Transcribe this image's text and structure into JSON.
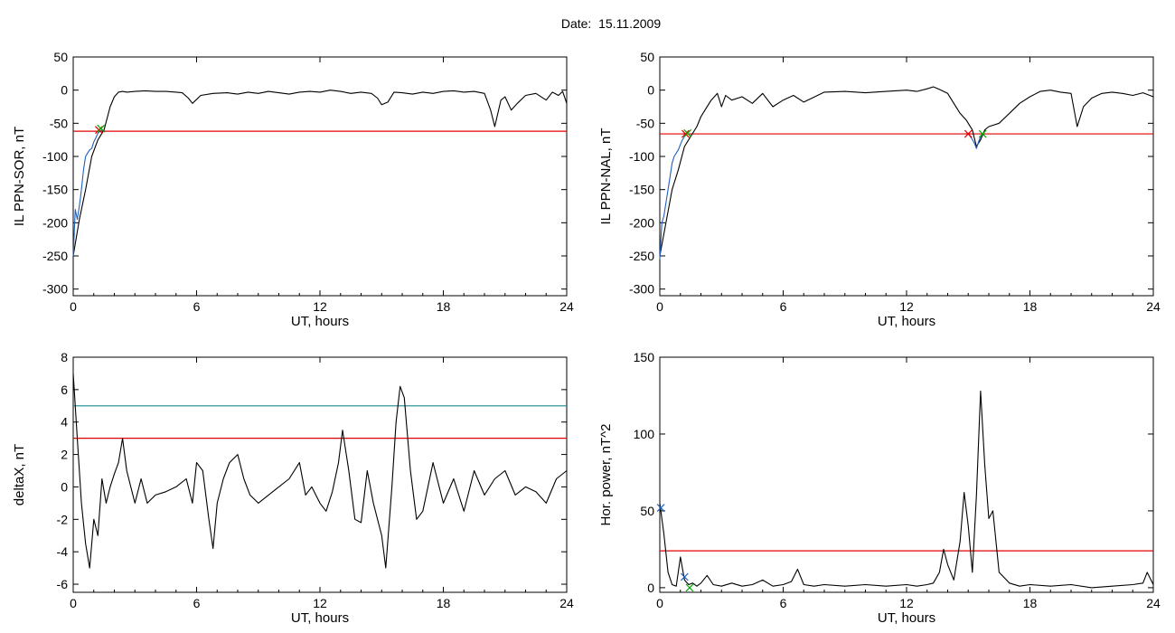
{
  "title": "Date:  15.11.2009",
  "chart_data": [
    {
      "type": "line",
      "xlabel": "UT, hours",
      "ylabel": "IL PPN-SOR, nT",
      "xlim": [
        0,
        24
      ],
      "ylim": [
        -310,
        50
      ],
      "xticks": [
        0,
        6,
        12,
        18,
        24
      ],
      "yticks": [
        50,
        0,
        -50,
        -100,
        -150,
        -200,
        -250,
        -300
      ],
      "series": [
        {
          "color": "#000000",
          "x": [
            0,
            0.3,
            0.6,
            0.9,
            1.2,
            1.5,
            1.8,
            2.0,
            2.2,
            2.4,
            2.6,
            3.0,
            3.5,
            4.0,
            4.5,
            5.0,
            5.3,
            5.6,
            5.8,
            6.2,
            6.8,
            7.5,
            8.0,
            8.5,
            9.0,
            9.5,
            10.0,
            10.5,
            11.0,
            11.5,
            12.0,
            12.5,
            13.0,
            13.5,
            14.0,
            14.5,
            14.8,
            15.0,
            15.3,
            15.6,
            16.0,
            16.5,
            17.0,
            17.5,
            18.0,
            18.5,
            19.0,
            19.5,
            20.0,
            20.3,
            20.5,
            20.8,
            21.0,
            21.3,
            21.6,
            22.0,
            22.5,
            23.0,
            23.3,
            23.6,
            23.8,
            24.0
          ],
          "y": [
            -250,
            -195,
            -150,
            -100,
            -75,
            -60,
            -25,
            -10,
            -3,
            -2,
            -3,
            -2,
            -1,
            -2,
            -2,
            -3,
            -4,
            -12,
            -20,
            -8,
            -5,
            -4,
            -6,
            -3,
            -5,
            -2,
            -4,
            -6,
            -3,
            -2,
            -3,
            0,
            -2,
            -5,
            -3,
            -5,
            -12,
            -22,
            -18,
            -3,
            -4,
            -6,
            -3,
            -5,
            -2,
            -1,
            -3,
            -2,
            -5,
            -30,
            -55,
            -15,
            -10,
            -30,
            -20,
            -8,
            -5,
            -15,
            -3,
            -8,
            -2,
            -20
          ]
        },
        {
          "color": "#1f5fbf",
          "x": [
            0,
            0.1,
            0.2,
            0.3,
            0.4,
            0.5,
            0.6,
            0.7,
            0.8,
            0.9,
            1.0,
            1.1,
            1.2,
            1.3,
            1.4
          ],
          "y": [
            -250,
            -180,
            -195,
            -175,
            -150,
            -120,
            -100,
            -95,
            -90,
            -88,
            -78,
            -72,
            -65,
            -62,
            -60
          ]
        }
      ],
      "hlines": [
        {
          "y": -62,
          "color": "#e00000"
        }
      ],
      "markers": [
        {
          "x": 1.25,
          "y": -60,
          "color": "#e00000",
          "symbol": "x"
        },
        {
          "x": 1.35,
          "y": -58,
          "color": "#00aa00",
          "symbol": "x"
        }
      ]
    },
    {
      "type": "line",
      "xlabel": "UT, hours",
      "ylabel": "IL PPN-NAL, nT",
      "xlim": [
        0,
        24
      ],
      "ylim": [
        -310,
        50
      ],
      "xticks": [
        0,
        6,
        12,
        18,
        24
      ],
      "yticks": [
        50,
        0,
        -50,
        -100,
        -150,
        -200,
        -250,
        -300
      ],
      "series": [
        {
          "color": "#000000",
          "x": [
            0,
            0.3,
            0.6,
            0.9,
            1.2,
            1.5,
            1.8,
            2.0,
            2.2,
            2.5,
            2.8,
            3.0,
            3.2,
            3.5,
            4.0,
            4.5,
            5.0,
            5.5,
            6.0,
            6.5,
            7.0,
            8.0,
            9.0,
            10.0,
            11.0,
            12.0,
            12.5,
            13.0,
            13.3,
            13.6,
            14.0,
            14.3,
            14.6,
            14.9,
            15.2,
            15.4,
            15.6,
            15.8,
            16.0,
            16.5,
            17.0,
            17.5,
            18.0,
            18.5,
            19.0,
            19.5,
            20.0,
            20.3,
            20.6,
            21.0,
            21.5,
            22.0,
            22.5,
            23.0,
            23.5,
            24.0
          ],
          "y": [
            -250,
            -200,
            -150,
            -120,
            -85,
            -70,
            -55,
            -40,
            -30,
            -15,
            -5,
            -25,
            -8,
            -15,
            -10,
            -20,
            -5,
            -25,
            -15,
            -8,
            -18,
            -3,
            -2,
            -4,
            -2,
            0,
            -2,
            2,
            5,
            1,
            -5,
            -20,
            -35,
            -45,
            -60,
            -85,
            -75,
            -60,
            -55,
            -50,
            -35,
            -20,
            -10,
            -2,
            0,
            -3,
            -5,
            -55,
            -25,
            -12,
            -5,
            -3,
            -5,
            -8,
            -4,
            -10
          ]
        },
        {
          "color": "#1f5fbf",
          "x": [
            0,
            0.1,
            0.2,
            0.3,
            0.4,
            0.5,
            0.6,
            0.7,
            0.8,
            0.9,
            1.0,
            1.1,
            1.2,
            1.3
          ],
          "y": [
            -255,
            -200,
            -190,
            -170,
            -150,
            -130,
            -110,
            -100,
            -95,
            -90,
            -82,
            -75,
            -70,
            -66
          ]
        },
        {
          "color": "#1f5fbf",
          "x": [
            15.0,
            15.15,
            15.3,
            15.4,
            15.5,
            15.6,
            15.7
          ],
          "y": [
            -66,
            -72,
            -80,
            -88,
            -78,
            -70,
            -66
          ]
        }
      ],
      "hlines": [
        {
          "y": -66,
          "color": "#e00000"
        }
      ],
      "markers": [
        {
          "x": 1.25,
          "y": -66,
          "color": "#e00000",
          "symbol": "x"
        },
        {
          "x": 1.35,
          "y": -65,
          "color": "#00aa00",
          "symbol": "x"
        },
        {
          "x": 15.0,
          "y": -66,
          "color": "#e00000",
          "symbol": "x"
        },
        {
          "x": 15.7,
          "y": -66,
          "color": "#00aa00",
          "symbol": "x"
        }
      ]
    },
    {
      "type": "line",
      "xlabel": "UT, hours",
      "ylabel": "deltaX, nT",
      "xlim": [
        0,
        24
      ],
      "ylim": [
        -6.5,
        8
      ],
      "xticks": [
        0,
        6,
        12,
        18,
        24
      ],
      "yticks": [
        8,
        6,
        4,
        2,
        0,
        -2,
        -4,
        -6
      ],
      "series": [
        {
          "color": "#000000",
          "x": [
            0,
            0.2,
            0.4,
            0.6,
            0.8,
            1.0,
            1.2,
            1.4,
            1.6,
            1.8,
            2.0,
            2.2,
            2.4,
            2.6,
            2.8,
            3.0,
            3.3,
            3.6,
            4.0,
            4.5,
            5.0,
            5.5,
            5.8,
            6.0,
            6.3,
            6.6,
            6.8,
            7.0,
            7.3,
            7.6,
            8.0,
            8.3,
            8.6,
            9.0,
            9.5,
            10.0,
            10.5,
            11.0,
            11.3,
            11.6,
            12.0,
            12.3,
            12.6,
            12.9,
            13.1,
            13.4,
            13.7,
            14.0,
            14.3,
            14.6,
            15.0,
            15.2,
            15.5,
            15.7,
            15.9,
            16.1,
            16.4,
            16.7,
            17.0,
            17.5,
            18.0,
            18.5,
            19.0,
            19.5,
            20.0,
            20.5,
            21.0,
            21.5,
            22.0,
            22.5,
            23.0,
            23.5,
            24.0
          ],
          "y": [
            7,
            3,
            -1,
            -3.5,
            -5,
            -2,
            -3,
            0.5,
            -1,
            0,
            0.8,
            1.5,
            3,
            1,
            0,
            -1,
            0.5,
            -1,
            -0.5,
            -0.3,
            0,
            0.5,
            -1,
            1.5,
            1,
            -2,
            -3.8,
            -1,
            0.5,
            1.5,
            2,
            0.5,
            -0.5,
            -1,
            -0.5,
            0,
            0.5,
            1.5,
            -0.5,
            0,
            -1,
            -1.5,
            -0.3,
            1.5,
            3.5,
            1,
            -2,
            -2.2,
            1,
            -1,
            -3,
            -5,
            0,
            4,
            6.2,
            5.5,
            1,
            -2,
            -1.5,
            1.5,
            -1,
            0.5,
            -1.5,
            1,
            -0.5,
            0.5,
            1,
            -0.5,
            0,
            -0.3,
            -1,
            0.5,
            1
          ]
        }
      ],
      "hlines": [
        {
          "y": 3,
          "color": "#e00000"
        },
        {
          "y": 5,
          "color": "#1a8a8a"
        }
      ],
      "markers": []
    },
    {
      "type": "line",
      "xlabel": "UT, hours",
      "ylabel": "Hor. power, nT^2",
      "xlim": [
        0,
        24
      ],
      "ylim": [
        -3,
        150
      ],
      "xticks": [
        0,
        6,
        12,
        18,
        24
      ],
      "yticks": [
        150,
        100,
        50,
        0
      ],
      "series": [
        {
          "color": "#000000",
          "x": [
            0,
            0.2,
            0.4,
            0.6,
            0.8,
            1.0,
            1.2,
            1.4,
            1.6,
            1.8,
            2.0,
            2.3,
            2.6,
            3.0,
            3.5,
            4.0,
            4.5,
            5.0,
            5.5,
            6.0,
            6.4,
            6.7,
            7.0,
            7.5,
            8.0,
            9.0,
            10.0,
            11.0,
            12.0,
            12.5,
            13.0,
            13.3,
            13.6,
            13.8,
            14.0,
            14.3,
            14.6,
            14.8,
            15.0,
            15.2,
            15.4,
            15.6,
            15.8,
            16.0,
            16.2,
            16.5,
            17.0,
            17.5,
            18.0,
            19.0,
            20.0,
            21.0,
            22.0,
            23.0,
            23.5,
            23.7,
            24.0
          ],
          "y": [
            55,
            35,
            10,
            2,
            1,
            20,
            5,
            2,
            3,
            1,
            3,
            8,
            2,
            1,
            3,
            1,
            2,
            5,
            1,
            2,
            4,
            12,
            2,
            1,
            2,
            1,
            2,
            1,
            2,
            1,
            2,
            3,
            10,
            25,
            15,
            5,
            30,
            62,
            40,
            10,
            60,
            128,
            80,
            45,
            50,
            10,
            3,
            1,
            2,
            1,
            2,
            0,
            1,
            2,
            3,
            10,
            2
          ]
        }
      ],
      "hlines": [
        {
          "y": 24,
          "color": "#e00000"
        }
      ],
      "markers": [
        {
          "x": 0.05,
          "y": 52,
          "color": "#1f5fbf",
          "symbol": "x"
        },
        {
          "x": 1.2,
          "y": 7,
          "color": "#1f5fbf",
          "symbol": "x"
        },
        {
          "x": 1.45,
          "y": 0,
          "color": "#00aa00",
          "symbol": "x"
        }
      ]
    }
  ]
}
